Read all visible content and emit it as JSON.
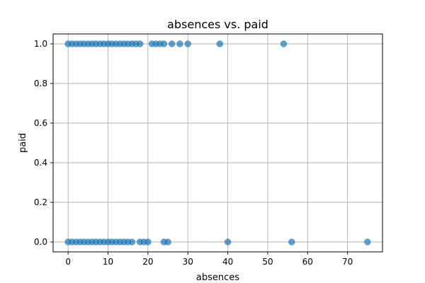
{
  "chart_data": {
    "type": "scatter",
    "title": "absences vs. paid",
    "xlabel": "absences",
    "ylabel": "paid",
    "xlim": [
      -3.75,
      78.75
    ],
    "ylim": [
      -0.05,
      1.05
    ],
    "xticks": [
      0,
      10,
      20,
      30,
      40,
      50,
      60,
      70
    ],
    "xtick_labels": [
      "0",
      "10",
      "20",
      "30",
      "40",
      "50",
      "60",
      "70"
    ],
    "yticks": [
      0.0,
      0.2,
      0.4,
      0.6,
      0.8,
      1.0
    ],
    "ytick_labels": [
      "0.0",
      "0.2",
      "0.4",
      "0.6",
      "0.8",
      "1.0"
    ],
    "grid": true,
    "marker_color": "#1f77b4",
    "marker_alpha": 0.7,
    "series": [
      {
        "x": [
          0,
          1,
          2,
          3,
          4,
          5,
          6,
          7,
          8,
          9,
          10,
          11,
          12,
          13,
          14,
          15,
          16,
          17,
          18,
          21,
          22,
          23,
          24,
          26,
          28,
          30,
          38,
          54
        ],
        "y": [
          1,
          1,
          1,
          1,
          1,
          1,
          1,
          1,
          1,
          1,
          1,
          1,
          1,
          1,
          1,
          1,
          1,
          1,
          1,
          1,
          1,
          1,
          1,
          1,
          1,
          1,
          1,
          1
        ]
      },
      {
        "x": [
          0,
          1,
          2,
          3,
          4,
          5,
          6,
          7,
          8,
          9,
          10,
          11,
          12,
          13,
          14,
          15,
          16,
          18,
          19,
          20,
          24,
          25,
          40,
          56,
          75
        ],
        "y": [
          0,
          0,
          0,
          0,
          0,
          0,
          0,
          0,
          0,
          0,
          0,
          0,
          0,
          0,
          0,
          0,
          0,
          0,
          0,
          0,
          0,
          0,
          0,
          0,
          0
        ]
      }
    ]
  }
}
